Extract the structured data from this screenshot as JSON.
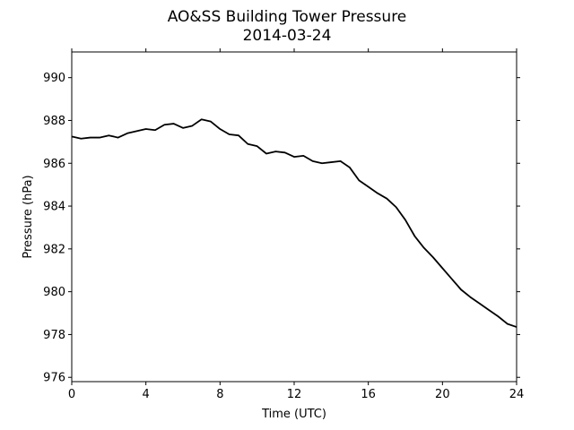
{
  "chart_data": {
    "type": "line",
    "title": "AO&SS Building Tower Pressure",
    "subtitle": "2014-03-24",
    "xlabel": "Time (UTC)",
    "ylabel": "Pressure (hPa)",
    "xlim": [
      0,
      24
    ],
    "ylim": [
      975.8,
      991.2
    ],
    "xticks": [
      0,
      4,
      8,
      12,
      16,
      20,
      24
    ],
    "yticks": [
      976,
      978,
      980,
      982,
      984,
      986,
      988,
      990
    ],
    "grid": false,
    "line_color": "#000000",
    "series": [
      {
        "x": [
          0,
          0.5,
          1,
          1.5,
          2,
          2.5,
          3,
          3.5,
          4,
          4.5,
          5,
          5.5,
          6,
          6.5,
          7,
          7.5,
          8,
          8.5,
          9,
          9.5,
          10,
          10.5,
          11,
          11.5,
          12,
          12.5,
          13,
          13.5,
          14,
          14.5,
          15,
          15.5,
          16,
          16.5,
          17,
          17.5,
          18,
          18.5,
          19,
          19.5,
          20,
          20.5,
          21,
          21.5,
          22,
          22.5,
          23,
          23.5,
          24
        ],
        "y": [
          987.25,
          987.15,
          987.2,
          987.2,
          987.3,
          987.2,
          987.4,
          987.5,
          987.6,
          987.55,
          987.8,
          987.85,
          987.65,
          987.75,
          988.05,
          987.95,
          987.6,
          987.35,
          987.3,
          986.9,
          986.8,
          986.45,
          986.55,
          986.5,
          986.3,
          986.35,
          986.1,
          986.0,
          986.05,
          986.1,
          985.8,
          985.2,
          984.9,
          984.6,
          984.35,
          983.95,
          983.35,
          982.6,
          982.05,
          981.6,
          981.1,
          980.6,
          980.1,
          979.75,
          979.45,
          979.15,
          978.85,
          978.5,
          978.35
        ]
      }
    ]
  }
}
